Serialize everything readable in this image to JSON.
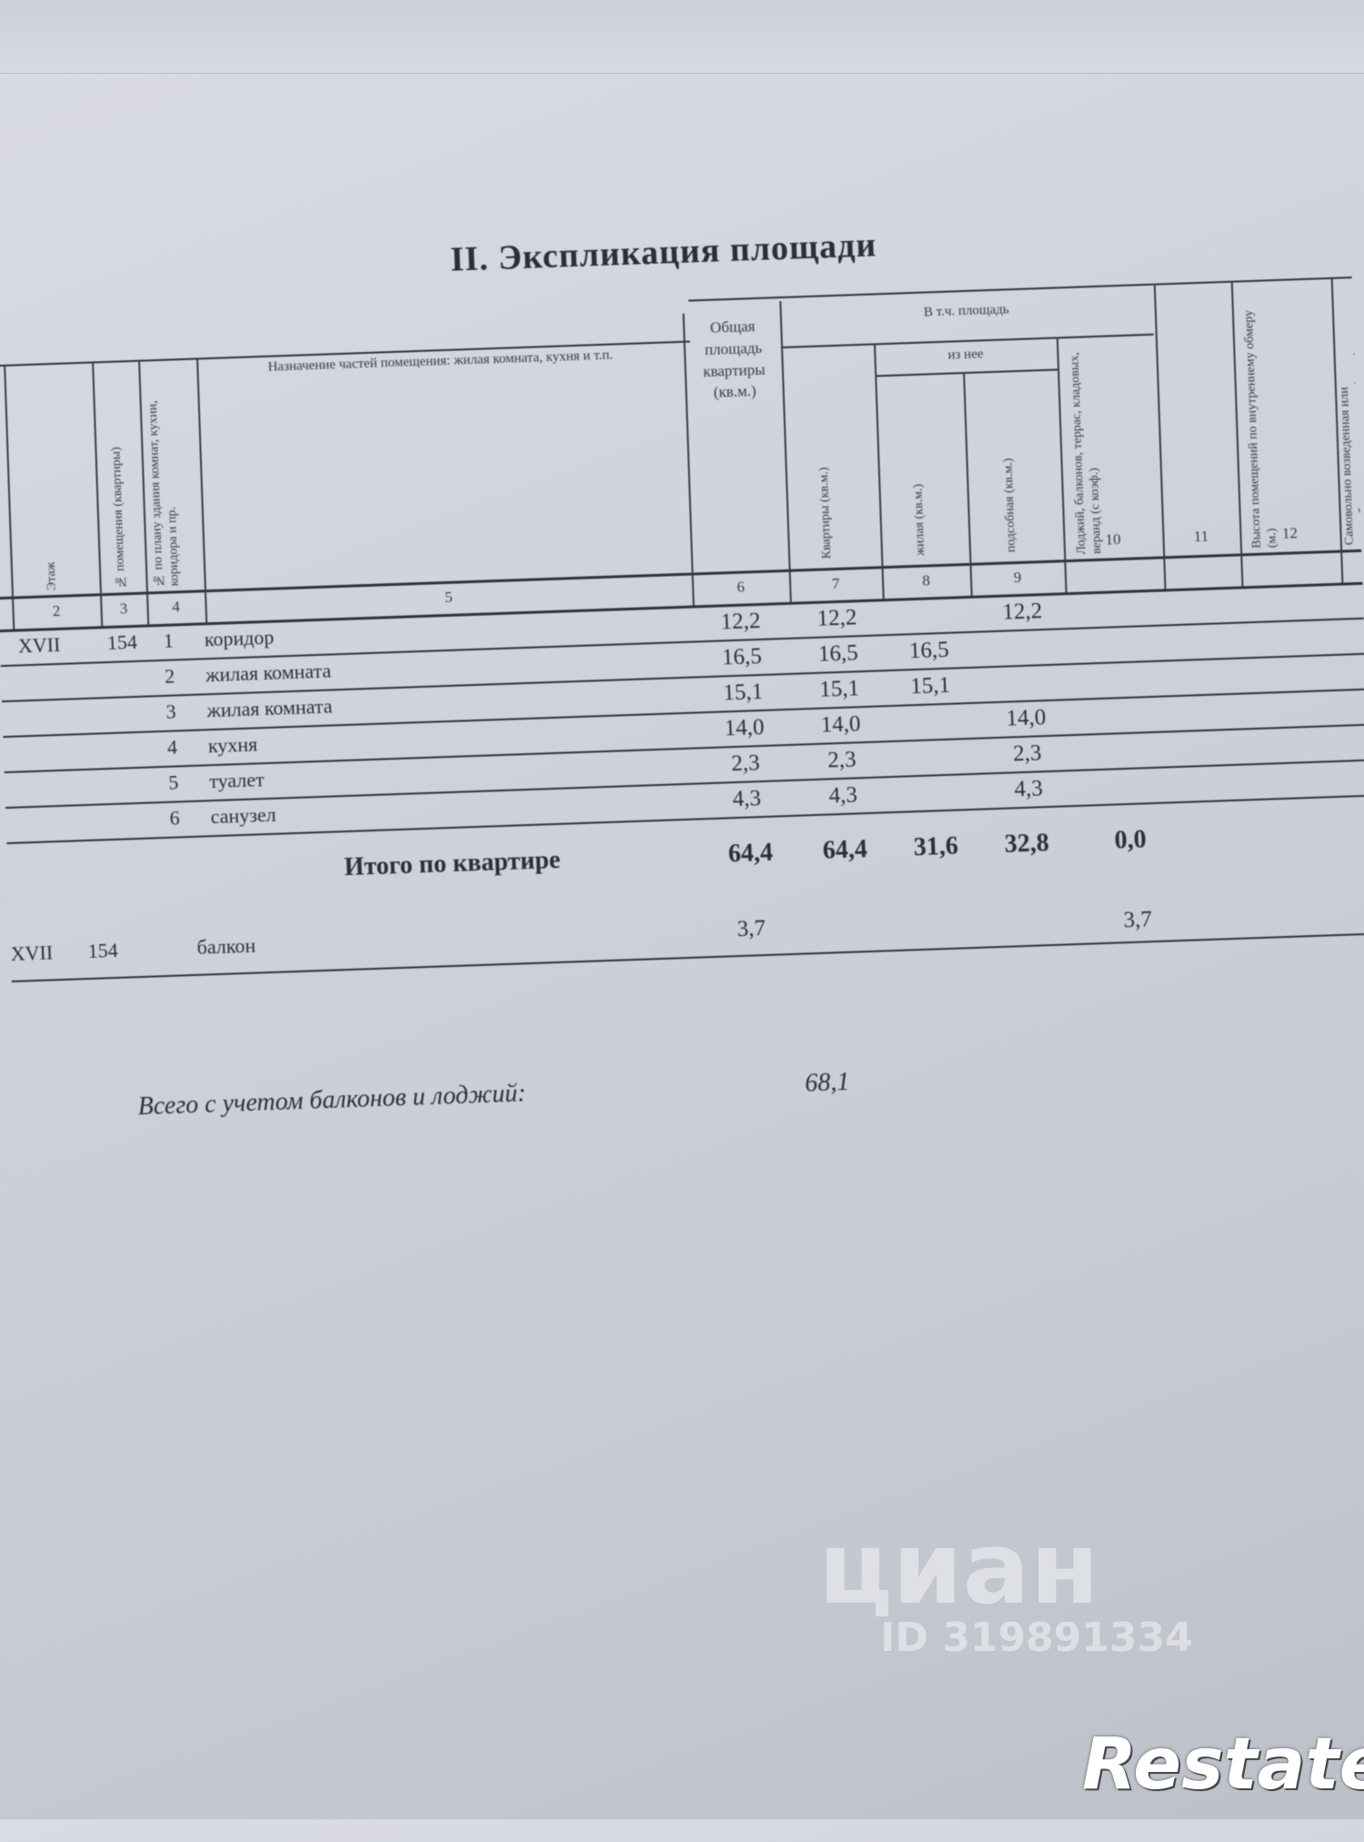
{
  "document": {
    "title": "II. Экспликация площади",
    "headers": {
      "floor": "Этаж",
      "apt_no": "№ помещения (квартиры)",
      "plan_no": "№ по плану здания комнат, кухни, коридора и пр.",
      "purpose": "Назначение частей помещения: жилая комната, кухня и т.п.",
      "total_area": "Общая площадь квартиры (кв.м.)",
      "group_incl": "В т.ч. площадь",
      "apartment": "Квартиры (кв.м.)",
      "of_which": "из нее",
      "living": "жилая (кв.м.)",
      "auxiliary": "подсобная (кв.м.)",
      "loggias": "Лоджий, балконов, террас, кладовых, веранд (с коэф.)",
      "height": "Высота помещений по внутреннему обмеру (м.)",
      "unauthorized": "Самовольно возведенная или переоборудованная площадь (кв.м.)"
    },
    "column_numbers": [
      "2",
      "3",
      "4",
      "5",
      "6",
      "7",
      "8",
      "9",
      "10",
      "11",
      "12"
    ],
    "rows": [
      {
        "floor": "XVII",
        "apt": "154",
        "no": "1",
        "name": "коридор",
        "total": "12,2",
        "apartment": "12,2",
        "living": "",
        "aux": "12,2"
      },
      {
        "floor": "",
        "apt": "",
        "no": "2",
        "name": "жилая комната",
        "total": "16,5",
        "apartment": "16,5",
        "living": "16,5",
        "aux": ""
      },
      {
        "floor": "",
        "apt": "",
        "no": "3",
        "name": "жилая комната",
        "total": "15,1",
        "apartment": "15,1",
        "living": "15,1",
        "aux": ""
      },
      {
        "floor": "",
        "apt": "",
        "no": "4",
        "name": "кухня",
        "total": "14,0",
        "apartment": "14,0",
        "living": "",
        "aux": "14,0"
      },
      {
        "floor": "",
        "apt": "",
        "no": "5",
        "name": "туалет",
        "total": "2,3",
        "apartment": "2,3",
        "living": "",
        "aux": "2,3"
      },
      {
        "floor": "",
        "apt": "",
        "no": "6",
        "name": "санузел",
        "total": "4,3",
        "apartment": "4,3",
        "living": "",
        "aux": "4,3"
      }
    ],
    "total_row": {
      "label": "Итого по квартире",
      "total": "64,4",
      "apartment": "64,4",
      "living": "31,6",
      "aux": "32,8",
      "loggias": "0,0"
    },
    "balcony_row": {
      "floor": "XVII",
      "apt": "154",
      "name": "балкон",
      "total": "3,7",
      "loggias": "3,7"
    },
    "grand_total": {
      "label": "Всего с учетом балконов и лоджий:",
      "value": "68,1"
    }
  },
  "watermark": {
    "brand": "циан",
    "id": "ID 319891334"
  },
  "logo": {
    "text": "Restate"
  }
}
